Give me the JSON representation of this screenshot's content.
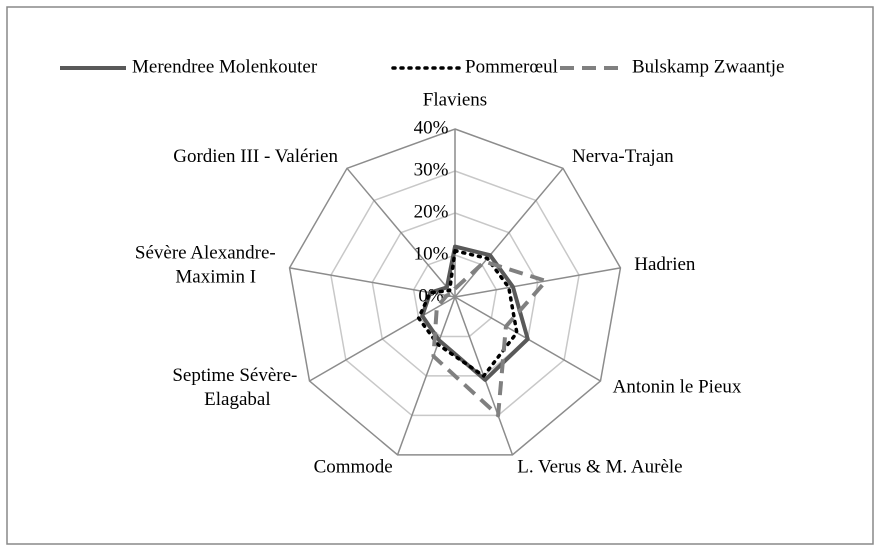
{
  "chart_data": {
    "type": "radar",
    "categories": [
      "Flaviens",
      "Nerva-Trajan",
      "Hadrien",
      "Antonin le Pieux",
      "L. Verus & M. Aurèle",
      "Commode",
      "Septime Sévère-\nElagabal",
      "Sévère Alexandre-\nMaximin I",
      "Gordien III - Valérien"
    ],
    "series": [
      {
        "name": "Merendree Molenkouter",
        "color": "#595959",
        "style": "solid",
        "values": [
          12,
          13,
          14,
          20,
          21,
          11,
          9,
          6,
          3
        ]
      },
      {
        "name": "Pommerœul",
        "color": "#000000",
        "style": "dotted",
        "values": [
          11,
          12,
          13,
          17,
          20,
          12,
          10,
          6,
          2
        ]
      },
      {
        "name": "Bulskamp Zwaantje",
        "color": "#808080",
        "style": "dashed",
        "values": [
          2,
          11,
          22,
          14,
          30,
          15,
          5,
          2,
          1
        ]
      }
    ],
    "ylim": [
      0,
      40
    ],
    "yticks": [
      {
        "value": 0,
        "label": "0%"
      },
      {
        "value": 10,
        "label": "10%"
      },
      {
        "value": 20,
        "label": "20%"
      },
      {
        "value": 30,
        "label": "30%"
      },
      {
        "value": 40,
        "label": "40%"
      }
    ],
    "grid": true,
    "legend": "top"
  }
}
